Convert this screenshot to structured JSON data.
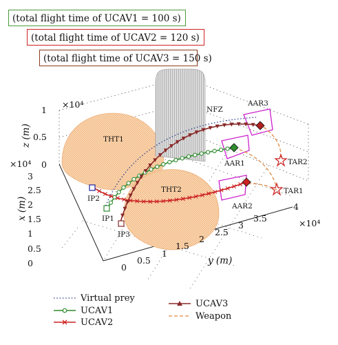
{
  "captions": {
    "uc1": "(total flight time of UCAV1 = 100 s)",
    "uc2": "(total flight time of UCAV2 = 120 s)",
    "uc3": "(total flight time of UCAV3 = 150 s)"
  },
  "colors": {
    "uc1_box": "#4a9a3a",
    "uc2_box": "#cc2222",
    "uc3_box": "#8a3a1a",
    "virtual_prey": "#2a3a8a",
    "ucav1": "#2e8b2e",
    "ucav2": "#cc2222",
    "ucav3": "#8a2a2a",
    "weapon": "#e08a40",
    "threat": "#f4a460",
    "nfz": "#b0b0b0",
    "aar_region": "#cc22cc"
  },
  "chart_data": {
    "type": "line3d",
    "axes": {
      "x": {
        "label": "x (m)",
        "range": [
          0,
          30000
        ],
        "ticks": [
          "0",
          "0.5",
          "1",
          "1.5",
          "2",
          "2.5",
          "3"
        ],
        "multiplier": "×10⁴"
      },
      "y": {
        "label": "y (m)",
        "range": [
          0,
          40000
        ],
        "ticks": [
          "0",
          "0.5",
          "1",
          "1.5",
          "2",
          "2.5",
          "3",
          "3.5",
          "4"
        ],
        "multiplier": "×10⁴"
      },
      "z": {
        "label": "z (m)",
        "range": [
          0,
          10000
        ],
        "ticks": [
          "0",
          "0.5",
          "1"
        ],
        "multiplier": "×10⁴"
      }
    },
    "annotations": [
      "THT1",
      "THT2",
      "NFZ",
      "AAR1",
      "AAR2",
      "AAR3",
      "TAR1",
      "TAR2",
      "IP1",
      "IP2",
      "IP3"
    ],
    "legend": [
      {
        "name": "Virtual prey",
        "style": "dotted"
      },
      {
        "name": "UCAV1",
        "style": "line-circle"
      },
      {
        "name": "UCAV2",
        "style": "line-cross"
      },
      {
        "name": "UCAV3",
        "style": "line-triangle"
      },
      {
        "name": "Weapon",
        "style": "dashed"
      }
    ],
    "series": [
      {
        "name": "UCAV1",
        "points": [
          [
            20000,
            6000,
            3000
          ],
          [
            14000,
            14000,
            6000
          ],
          [
            9000,
            21000,
            6000
          ],
          [
            7000,
            27000,
            4000
          ]
        ]
      },
      {
        "name": "UCAV2",
        "points": [
          [
            22000,
            6000,
            2000
          ],
          [
            18000,
            14000,
            2000
          ],
          [
            13000,
            21000,
            2000
          ],
          [
            9000,
            27000,
            2000
          ]
        ]
      },
      {
        "name": "UCAV3",
        "points": [
          [
            16000,
            5000,
            3000
          ],
          [
            12000,
            15000,
            8000
          ],
          [
            6000,
            24000,
            8000
          ],
          [
            2000,
            30000,
            6000
          ]
        ]
      },
      {
        "name": "Virtual prey",
        "points": [
          [
            20000,
            5000,
            3000
          ],
          [
            14000,
            15000,
            8000
          ],
          [
            8000,
            24000,
            8000
          ],
          [
            3000,
            31000,
            6000
          ]
        ]
      }
    ]
  }
}
